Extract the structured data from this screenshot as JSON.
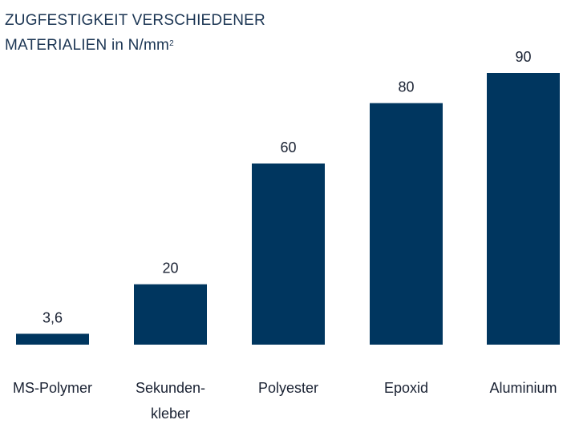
{
  "chart_data": {
    "type": "bar",
    "title_line1": "ZUGFESTIGKEIT VERSCHIEDENER",
    "title_line2": "MATERIALIEN in N/mm",
    "title_sup": "2",
    "categories": [
      [
        "MS-Polymer"
      ],
      [
        "Sekunden-",
        "kleber"
      ],
      [
        "Polyester"
      ],
      [
        "Epoxid"
      ],
      [
        "Aluminium"
      ]
    ],
    "values": [
      3.6,
      20,
      60,
      80,
      90
    ],
    "data_labels": [
      "3,6",
      "20",
      "60",
      "80",
      "90"
    ],
    "ylim": [
      0,
      90
    ],
    "grid": false,
    "bar_color": "#00365f"
  }
}
